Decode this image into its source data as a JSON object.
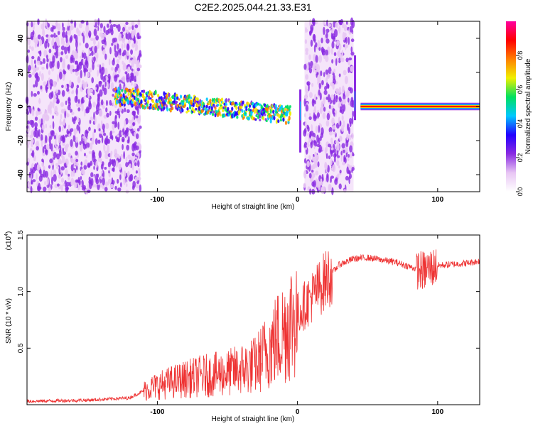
{
  "title": "C2E2.2025.044.21.33.E31",
  "chart_data": [
    {
      "type": "heatmap",
      "xlabel": "Height of straight line (km)",
      "ylabel": "Frequency (Hz)",
      "xlim": [
        -193,
        130
      ],
      "ylim": [
        -50,
        50
      ],
      "xticks": [
        -100,
        0,
        100
      ],
      "xtick_labels": [
        "-100",
        "0",
        "100"
      ],
      "yticks": [
        -40,
        -20,
        0,
        20,
        40
      ],
      "ytick_labels": [
        "-40",
        "-20",
        "0",
        "20",
        "40"
      ],
      "colorbar": {
        "label": "Normalized spectral amplitude",
        "range": [
          0,
          1
        ],
        "ticks": [
          0,
          0.2,
          0.4,
          0.6,
          0.8
        ],
        "tick_labels": [
          "0.0",
          "0.2",
          "0.4",
          "0.6",
          "0.8"
        ],
        "colors": [
          "#ffffff",
          "#e8c6f4",
          "#8a2be2",
          "#2200ff",
          "#00c8ff",
          "#00e060",
          "#f0f000",
          "#ff8000",
          "#ff0000",
          "#ff00a0"
        ]
      },
      "features": [
        {
          "name": "noise",
          "x_range": [
            -193,
            -112
          ],
          "freq_range": [
            -50,
            50
          ],
          "amplitude": 0.1
        },
        {
          "name": "trace",
          "x_range": [
            -130,
            -5
          ],
          "center_freq": [
            6,
            -5
          ],
          "amplitude": 0.45
        },
        {
          "name": "noise",
          "x_range": [
            5,
            40
          ],
          "freq_range": [
            -50,
            50
          ],
          "amplitude": 0.1
        },
        {
          "name": "spike",
          "x": 2,
          "freq_range": [
            -27,
            10
          ]
        },
        {
          "name": "spike",
          "x": 41,
          "freq_range": [
            -8,
            30
          ]
        },
        {
          "name": "tone",
          "x_range": [
            45,
            130
          ],
          "freq": 0,
          "amplitude": 0.9
        }
      ]
    },
    {
      "type": "line",
      "xlabel": "Height of straight line (km)",
      "ylabel": "SNR (10 * v/v)",
      "ylabel_scale": "(x10",
      "ylabel_scale_exponent": "4",
      "ylabel_scale_close": ")",
      "xlim": [
        -193,
        130
      ],
      "ylim": [
        0,
        15000
      ],
      "xticks": [
        -100,
        0,
        100
      ],
      "xtick_labels": [
        "-100",
        "0",
        "100"
      ],
      "yticks": [
        5000,
        10000,
        15000
      ],
      "ytick_labels": [
        "0.5",
        "1.0",
        "1.5"
      ],
      "color": "#ee3333",
      "series": [
        {
          "x": [
            -193,
            -150,
            -120,
            -105,
            -90,
            -70,
            -50,
            -30,
            -20,
            -10,
            -5,
            0,
            5,
            10,
            20,
            30,
            40,
            50,
            60,
            70,
            80,
            90,
            93,
            100,
            110,
            120,
            130
          ],
          "y": [
            300,
            400,
            600,
            1500,
            2000,
            2500,
            2800,
            3500,
            5000,
            6500,
            7500,
            8000,
            8800,
            9500,
            11000,
            12400,
            12900,
            13000,
            12800,
            12600,
            12200,
            11800,
            12000,
            12300,
            12400,
            12500,
            12700
          ]
        }
      ]
    }
  ]
}
